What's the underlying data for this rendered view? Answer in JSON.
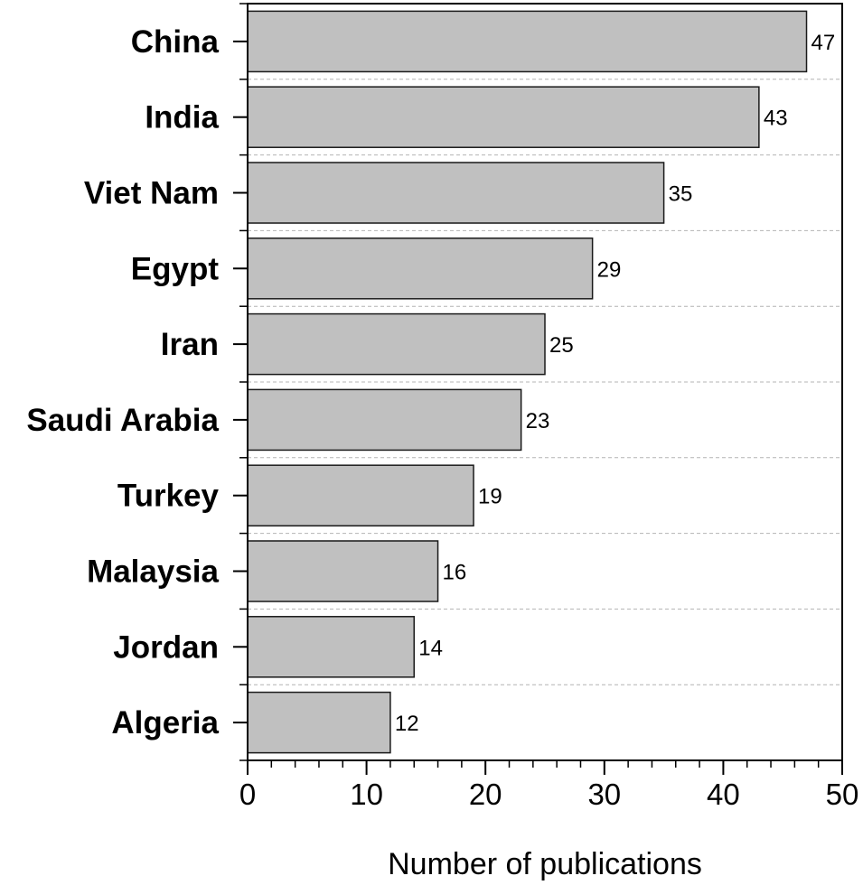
{
  "chart_data": {
    "type": "bar",
    "orientation": "horizontal",
    "categories": [
      "China",
      "India",
      "Viet Nam",
      "Egypt",
      "Iran",
      "Saudi Arabia",
      "Turkey",
      "Malaysia",
      "Jordan",
      "Algeria"
    ],
    "values": [
      47,
      43,
      35,
      29,
      25,
      23,
      19,
      16,
      14,
      12
    ],
    "data_labels": [
      "47",
      "43",
      "35",
      "29",
      "25",
      "23",
      "19",
      "16",
      "14",
      "12"
    ],
    "xlabel": "Number of publications",
    "ylabel": "",
    "xlim": [
      0,
      50
    ],
    "xticks": [
      0,
      10,
      20,
      30,
      40,
      50
    ],
    "xtick_labels": [
      "0",
      "10",
      "20",
      "30",
      "40",
      "50"
    ],
    "minor_tick_step": 2,
    "grid": "horizontal dashed between bars",
    "legend": "none"
  },
  "colors": {
    "bar_fill": "#c0c0c0",
    "bar_stroke": "#1a1a1a",
    "axis": "#000000",
    "grid": "#b4b4b4",
    "text": "#000000"
  }
}
